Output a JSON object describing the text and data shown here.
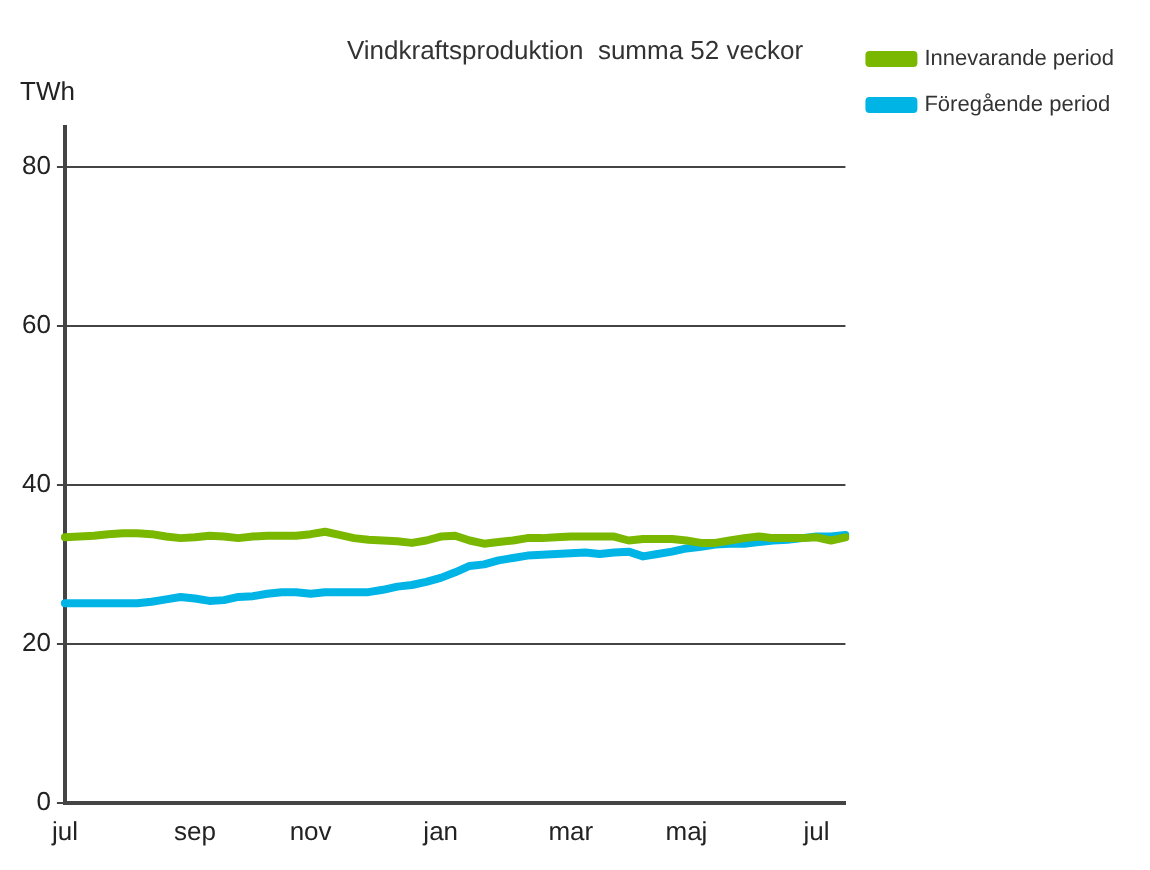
{
  "chart_data": {
    "type": "line",
    "title": "Vindkraftsproduktion  summa 52 veckor",
    "ylabel": "TWh",
    "categories": [
      "jul",
      null,
      null,
      null,
      null,
      null,
      null,
      null,
      null,
      "sep",
      null,
      null,
      null,
      null,
      null,
      null,
      null,
      "nov",
      null,
      null,
      null,
      null,
      null,
      null,
      null,
      null,
      "jan",
      null,
      null,
      null,
      null,
      null,
      null,
      null,
      null,
      "mar",
      null,
      null,
      null,
      null,
      null,
      null,
      null,
      "maj",
      null,
      null,
      null,
      null,
      null,
      null,
      null,
      null,
      "jul",
      null,
      null
    ],
    "series": [
      {
        "name": "Innevarande period",
        "color": "#7ab800",
        "values": [
          33.4,
          33.5,
          33.6,
          33.8,
          33.9,
          33.9,
          33.8,
          33.5,
          33.3,
          33.4,
          33.6,
          33.5,
          33.3,
          33.5,
          33.6,
          33.6,
          33.6,
          33.8,
          34.1,
          33.7,
          33.3,
          33.1,
          33.0,
          32.9,
          32.7,
          33.0,
          33.5,
          33.6,
          33.0,
          32.6,
          32.8,
          33.0,
          33.3,
          33.3,
          33.4,
          33.5,
          33.5,
          33.5,
          33.5,
          33.0,
          33.2,
          33.2,
          33.2,
          33.0,
          32.7,
          32.7,
          33.0,
          33.3,
          33.5,
          33.3,
          33.3,
          33.3,
          33.4,
          33.0,
          33.4
        ]
      },
      {
        "name": "Föregående period",
        "color": "#00b4e6",
        "values": [
          25.1,
          25.1,
          25.1,
          25.1,
          25.1,
          25.1,
          25.3,
          25.6,
          25.9,
          25.7,
          25.4,
          25.5,
          25.9,
          26.0,
          26.3,
          26.5,
          26.5,
          26.3,
          26.5,
          26.5,
          26.5,
          26.5,
          26.8,
          27.2,
          27.4,
          27.8,
          28.3,
          29.0,
          29.8,
          30.0,
          30.5,
          30.8,
          31.1,
          31.2,
          31.3,
          31.4,
          31.5,
          31.3,
          31.5,
          31.6,
          31.0,
          31.3,
          31.6,
          32.0,
          32.2,
          32.5,
          32.6,
          32.6,
          32.8,
          33.0,
          33.1,
          33.3,
          33.5,
          33.5,
          33.7
        ]
      }
    ],
    "ylim": [
      0,
      85
    ],
    "yticks": [
      0,
      20,
      40,
      60,
      80
    ],
    "grid": "y",
    "legend": "right",
    "marker": "none",
    "line_style": "solid"
  }
}
